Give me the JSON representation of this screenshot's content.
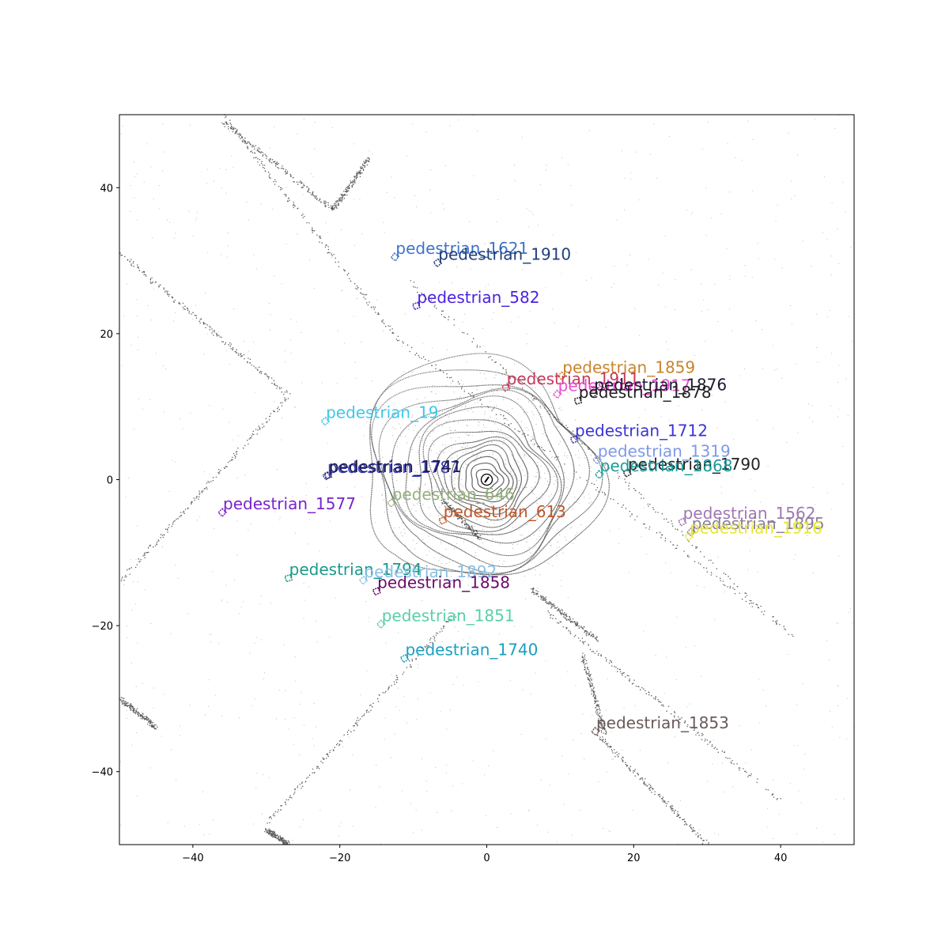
{
  "chart_data": {
    "type": "scatter",
    "xlim": [
      -50,
      50
    ],
    "ylim": [
      -50,
      50
    ],
    "x_ticks": [
      -40,
      -20,
      0,
      20,
      40
    ],
    "y_ticks": [
      -40,
      -20,
      0,
      20,
      40
    ],
    "x_tick_labels": [
      "−40",
      "−20",
      "0",
      "20",
      "40"
    ],
    "y_tick_labels": [
      "−40",
      "−20",
      "0",
      "20",
      "40"
    ],
    "grid": false,
    "ego": {
      "x": 0,
      "y": 0
    },
    "lidar_points_color": "#333333",
    "annotations": [
      {
        "label": "pedestrian_1621",
        "x": -12.5,
        "y": 30.5,
        "color": "#3e73c9"
      },
      {
        "label": "pedestrian_1910",
        "x": -6.7,
        "y": 29.7,
        "color": "#1f3f7a"
      },
      {
        "label": "pedestrian_582",
        "x": -9.6,
        "y": 23.8,
        "color": "#4c22e0"
      },
      {
        "label": "pedestrian_1859",
        "x": 10.2,
        "y": 14.2,
        "color": "#c9842c"
      },
      {
        "label": "pedestrian_1911",
        "x": 2.6,
        "y": 12.6,
        "color": "#c43a5a"
      },
      {
        "label": "pedestrian_1917",
        "x": 9.6,
        "y": 11.7,
        "color": "#e84fd0"
      },
      {
        "label": "pedestrian_1876",
        "x": 14.5,
        "y": 11.8,
        "color": "#1a1a2e"
      },
      {
        "label": "pedestrian_1878",
        "x": 12.4,
        "y": 10.8,
        "color": "#222222"
      },
      {
        "label": "pedestrian_19",
        "x": -22.0,
        "y": 8.0,
        "color": "#3cc8ea"
      },
      {
        "label": "pedestrian_1712",
        "x": 11.9,
        "y": 5.5,
        "color": "#3a34d4"
      },
      {
        "label": "pedestrian_1319",
        "x": 15.0,
        "y": 2.7,
        "color": "#7f99e6"
      },
      {
        "label": "pedestrian_1790",
        "x": 19.1,
        "y": 0.9,
        "color": "#222222"
      },
      {
        "label": "pedestrian_1868",
        "x": 15.3,
        "y": 0.7,
        "color": "#1a9a9a"
      },
      {
        "label": "pedestrian_1787",
        "x": -21.8,
        "y": 0.5,
        "color": "#4040c0"
      },
      {
        "label": "pedestrian_1741",
        "x": -21.6,
        "y": 0.6,
        "color": "#1a1a4a"
      },
      {
        "label": "pedestrian_646",
        "x": -13.0,
        "y": -3.2,
        "color": "#94b07a"
      },
      {
        "label": "pedestrian_613",
        "x": -6.0,
        "y": -5.6,
        "color": "#c2572a"
      },
      {
        "label": "pedestrian_1577",
        "x": -36.0,
        "y": -4.5,
        "color": "#7a22cc"
      },
      {
        "label": "pedestrian_1562",
        "x": 26.6,
        "y": -5.8,
        "color": "#a078b0"
      },
      {
        "label": "pedestrian_1895",
        "x": 27.8,
        "y": -7.2,
        "color": "#8a7e9a"
      },
      {
        "label": "pedestrian_1916",
        "x": 27.5,
        "y": -7.8,
        "color": "#e6e632"
      },
      {
        "label": "pedestrian_1794",
        "x": -27.0,
        "y": -13.5,
        "color": "#1a9a8a"
      },
      {
        "label": "pedestrian_1892",
        "x": -16.8,
        "y": -13.8,
        "color": "#8ac0e6"
      },
      {
        "label": "pedestrian_1858",
        "x": -15.0,
        "y": -15.3,
        "color": "#6a0a6a"
      },
      {
        "label": "pedestrian_1851",
        "x": -14.4,
        "y": -19.8,
        "color": "#5ad0a8"
      },
      {
        "label": "pedestrian_1740",
        "x": -11.2,
        "y": -24.5,
        "color": "#1aa0c0"
      },
      {
        "label": "pedestrian_1853",
        "x": 14.8,
        "y": -34.5,
        "color": "#6a5a5a"
      }
    ]
  }
}
